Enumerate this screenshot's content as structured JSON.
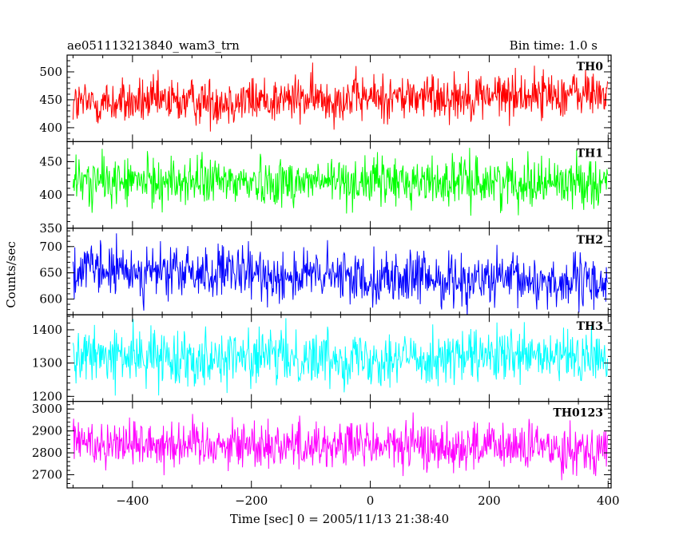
{
  "header": {
    "left": "ae051113213840_wam3_trn",
    "right": "Bin time: 1.0 s"
  },
  "chart_data": {
    "type": "line",
    "xlabel": "Time [sec] 0 = 2005/11/13 21:38:40",
    "ylabel": "Counts/sec",
    "xlim": [
      -510,
      405
    ],
    "x_ticks": [
      -400,
      -200,
      0,
      200,
      400
    ],
    "x_tick_labels": [
      "−400",
      "−200",
      "0",
      "200",
      "400"
    ],
    "x_range": [
      -500,
      399
    ],
    "bin_time_s": 1.0,
    "panels": [
      {
        "name": "TH0",
        "color": "#ff0000",
        "ylim": [
          375,
          530
        ],
        "yticks": [
          400,
          450,
          500
        ],
        "mean_start": 443,
        "mean_end": 462,
        "spread": 21
      },
      {
        "name": "TH1",
        "color": "#00ff00",
        "ylim": [
          350,
          480
        ],
        "yticks": [
          350,
          400,
          450
        ],
        "mean_start": 420,
        "mean_end": 420,
        "spread": 18
      },
      {
        "name": "TH2",
        "color": "#0000ff",
        "ylim": [
          570,
          735
        ],
        "yticks": [
          600,
          650,
          700
        ],
        "mean_start": 655,
        "mean_end": 630,
        "spread": 25
      },
      {
        "name": "TH3",
        "color": "#00ffff",
        "ylim": [
          1185,
          1445
        ],
        "yticks": [
          1200,
          1300,
          1400
        ],
        "mean_start": 1320,
        "mean_end": 1315,
        "spread": 40
      },
      {
        "name": "TH0123",
        "color": "#ff00ff",
        "ylim": [
          2640,
          3035
        ],
        "yticks": [
          2700,
          2800,
          2900,
          3000
        ],
        "mean_start": 2850,
        "mean_end": 2820,
        "spread": 55
      }
    ]
  }
}
